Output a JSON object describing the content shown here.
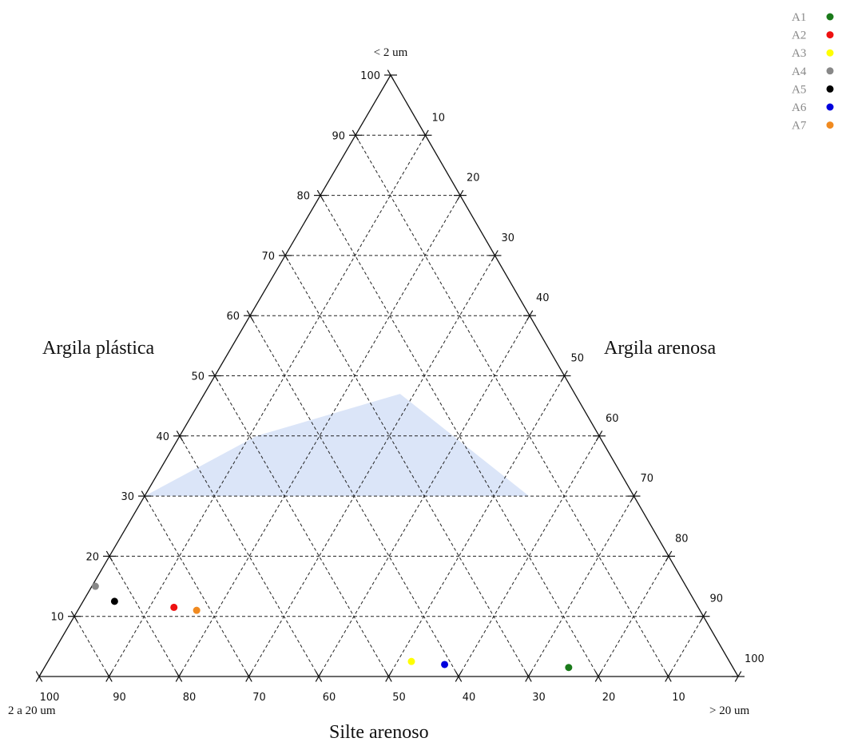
{
  "chart_data": {
    "type": "scatter",
    "subtype": "ternary",
    "corner_labels": {
      "top": "< 2 um",
      "left": "2 a 20 um",
      "right": "> 20 um"
    },
    "region_labels": {
      "left": "Argila plástica",
      "right": "Argila arenosa",
      "bottom": "Silte arenoso"
    },
    "ticks": {
      "left_axis": [
        "10",
        "20",
        "30",
        "40",
        "50",
        "60",
        "70",
        "80",
        "90",
        "100"
      ],
      "right_axis": [
        "10",
        "20",
        "30",
        "40",
        "50",
        "60",
        "70",
        "80",
        "90",
        "100"
      ],
      "bottom_axis": [
        "100",
        "90",
        "80",
        "70",
        "60",
        "50",
        "40",
        "30",
        "20",
        "10"
      ]
    },
    "grid": true,
    "shaded_region": {
      "fill": "#dbe5f8",
      "vertices": [
        {
          "clay": 30,
          "fine": 70,
          "coarse": 0
        },
        {
          "clay": 30,
          "fine": 15,
          "coarse": 55
        },
        {
          "clay": 47,
          "fine": 25,
          "coarse": 28
        },
        {
          "clay": 40,
          "fine": 49,
          "coarse": 11
        }
      ]
    },
    "legend_position": "top-right",
    "series": [
      {
        "name": "A1",
        "color": "#1a7a1a",
        "clay": 1.5,
        "fine": 23.5,
        "coarse": 75
      },
      {
        "name": "A2",
        "color": "#ee1111",
        "clay": 11.5,
        "fine": 75,
        "coarse": 13.5
      },
      {
        "name": "A3",
        "color": "#ffff00",
        "clay": 2.5,
        "fine": 45.5,
        "coarse": 52
      },
      {
        "name": "A4",
        "color": "#888888",
        "clay": 15,
        "fine": 84.5,
        "coarse": 0.5
      },
      {
        "name": "A5",
        "color": "#000000",
        "clay": 12.5,
        "fine": 83,
        "coarse": 4.5
      },
      {
        "name": "A6",
        "color": "#0000dd",
        "clay": 2,
        "fine": 41,
        "coarse": 57
      },
      {
        "name": "A7",
        "color": "#f08a20",
        "clay": 11,
        "fine": 72,
        "coarse": 17
      }
    ]
  }
}
